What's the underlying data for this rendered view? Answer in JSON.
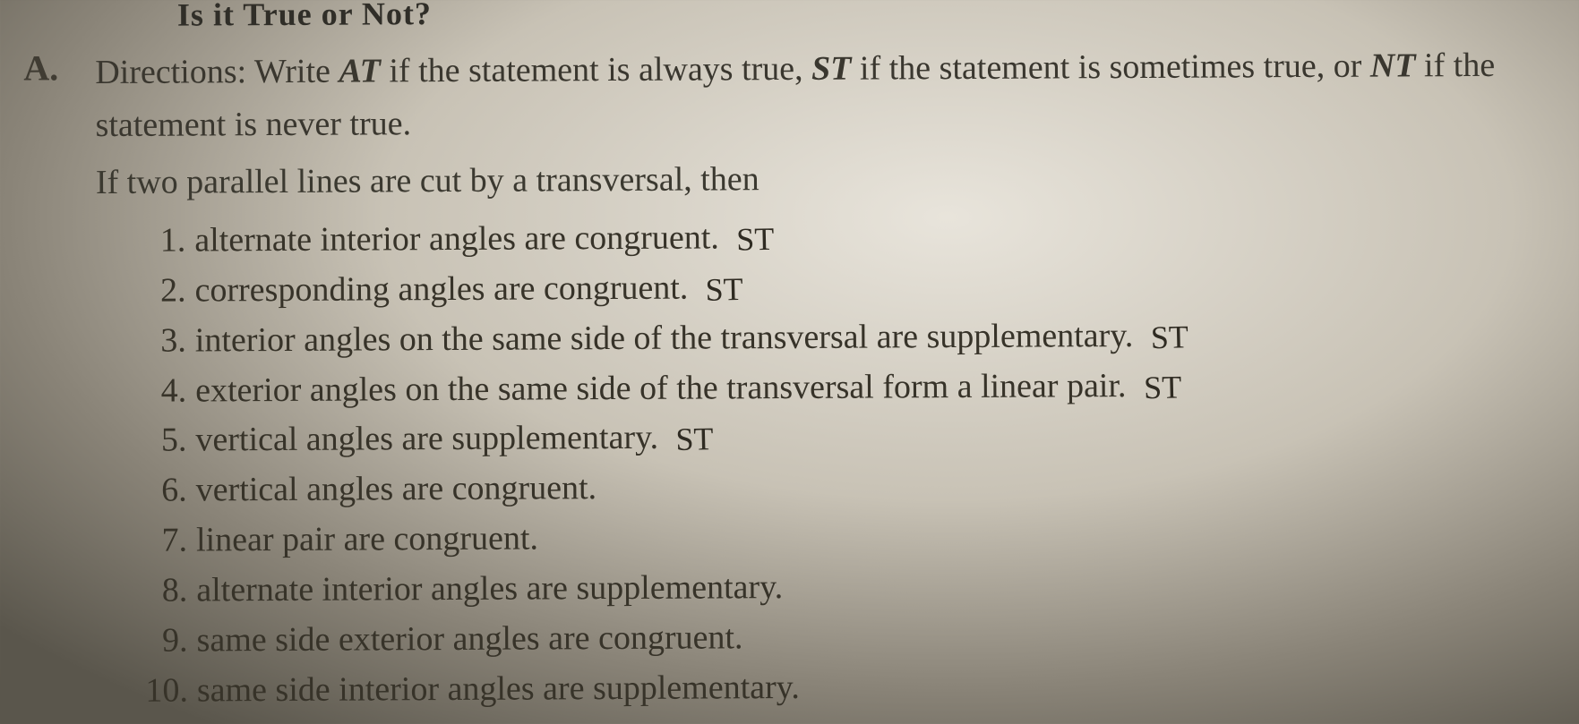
{
  "header": {
    "title_fragment": "Is it True or Not?"
  },
  "section": {
    "letter": "A.",
    "directions_prefix": "Directions: Write ",
    "code_at": "AT",
    "directions_mid1": " if the statement is always true, ",
    "code_st": "ST",
    "directions_mid2": " if the statement is sometimes true, or ",
    "code_nt": "NT",
    "directions_suffix": " if the statement is never true.",
    "intro": "If two parallel lines are cut by a transversal, then"
  },
  "items": [
    {
      "n": "1.",
      "text": "alternate interior angles are congruent.",
      "handwritten": "ST"
    },
    {
      "n": "2.",
      "text": "corresponding angles are congruent.",
      "handwritten": "ST"
    },
    {
      "n": "3.",
      "text": "interior angles on the same side of the transversal are supplementary.",
      "handwritten": "ST"
    },
    {
      "n": "4.",
      "text": "exterior angles on the same side of the transversal form a linear pair.",
      "handwritten": "ST"
    },
    {
      "n": "5.",
      "text": "vertical angles are supplementary.",
      "handwritten": "ST"
    },
    {
      "n": "6.",
      "text": "vertical angles are congruent.",
      "handwritten": ""
    },
    {
      "n": "7.",
      "text": "linear pair are congruent.",
      "handwritten": ""
    },
    {
      "n": "8.",
      "text": "alternate interior angles are supplementary.",
      "handwritten": ""
    },
    {
      "n": "9.",
      "text": "same side exterior angles are congruent.",
      "handwritten": ""
    },
    {
      "n": "10.",
      "text": "same side interior angles are supplementary.",
      "handwritten": ""
    }
  ],
  "style": {
    "bg_center": "#e8e4db",
    "bg_edge": "#5a564c",
    "text_color": "#2b2b28",
    "hand_color": "#2f2b22",
    "body_fontsize_pt": 28,
    "title_fontsize_pt": 27,
    "font_family": "serif"
  }
}
